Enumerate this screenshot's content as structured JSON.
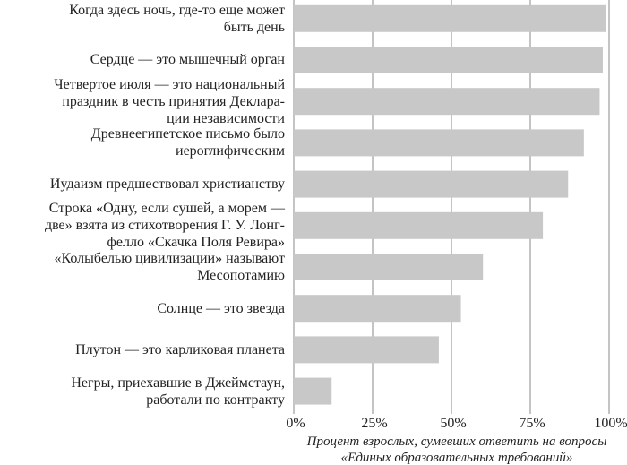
{
  "chart_data": {
    "type": "bar",
    "orientation": "horizontal",
    "categories": [
      "Когда здесь ночь, где-то еще может\nбыть день",
      "Сердце — это мышечный орган",
      "Четвертое июля — это национальный\nпраздник в честь принятия Деклара-\nции независимости",
      "Древнеегипетское письмо было\nиероглифическим",
      "Иудаизм предшествовал христианству",
      "Строка «Одну, если сушей, а морем —\nдве» взята из стихотворения Г. У. Лонг-\nфелло «Скачка Поля Ревира»",
      "«Колыбелью цивилизации» называют\nМесопотамию",
      "Солнце — это звезда",
      "Плутон — это карликовая планета",
      "Негры, приехавшие в Джеймстаун,\nработали по контракту"
    ],
    "values": [
      99,
      98,
      97,
      92,
      87,
      79,
      60,
      53,
      46,
      12
    ],
    "color": "#c8c8c8",
    "xlim": [
      0,
      100
    ],
    "xticks": [
      {
        "value": 0,
        "label": "0%"
      },
      {
        "value": 25,
        "label": "25%"
      },
      {
        "value": 50,
        "label": "50%"
      },
      {
        "value": 75,
        "label": "75%"
      },
      {
        "value": 100,
        "label": "100%"
      }
    ],
    "x_label": "Процент взрослых, сумевших ответить на вопросы\n«Единых образовательных требований»",
    "grid": true
  }
}
